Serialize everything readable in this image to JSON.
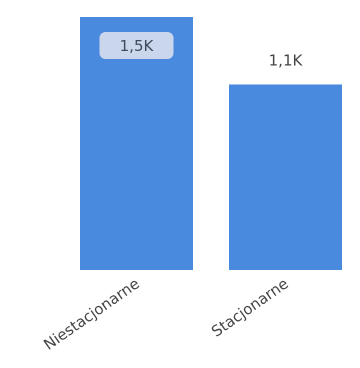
{
  "chart_data": {
    "type": "bar",
    "categories": [
      "Niestacjonarne",
      "Stacjonarne"
    ],
    "values": [
      1500,
      1100
    ],
    "data_labels": [
      "1,5K",
      "1,1K"
    ],
    "ylim": [
      0,
      1500
    ],
    "grid": false,
    "legend": "none",
    "bar_color": "#4a8ade",
    "inside_label_bg": "#c9d6ec"
  }
}
